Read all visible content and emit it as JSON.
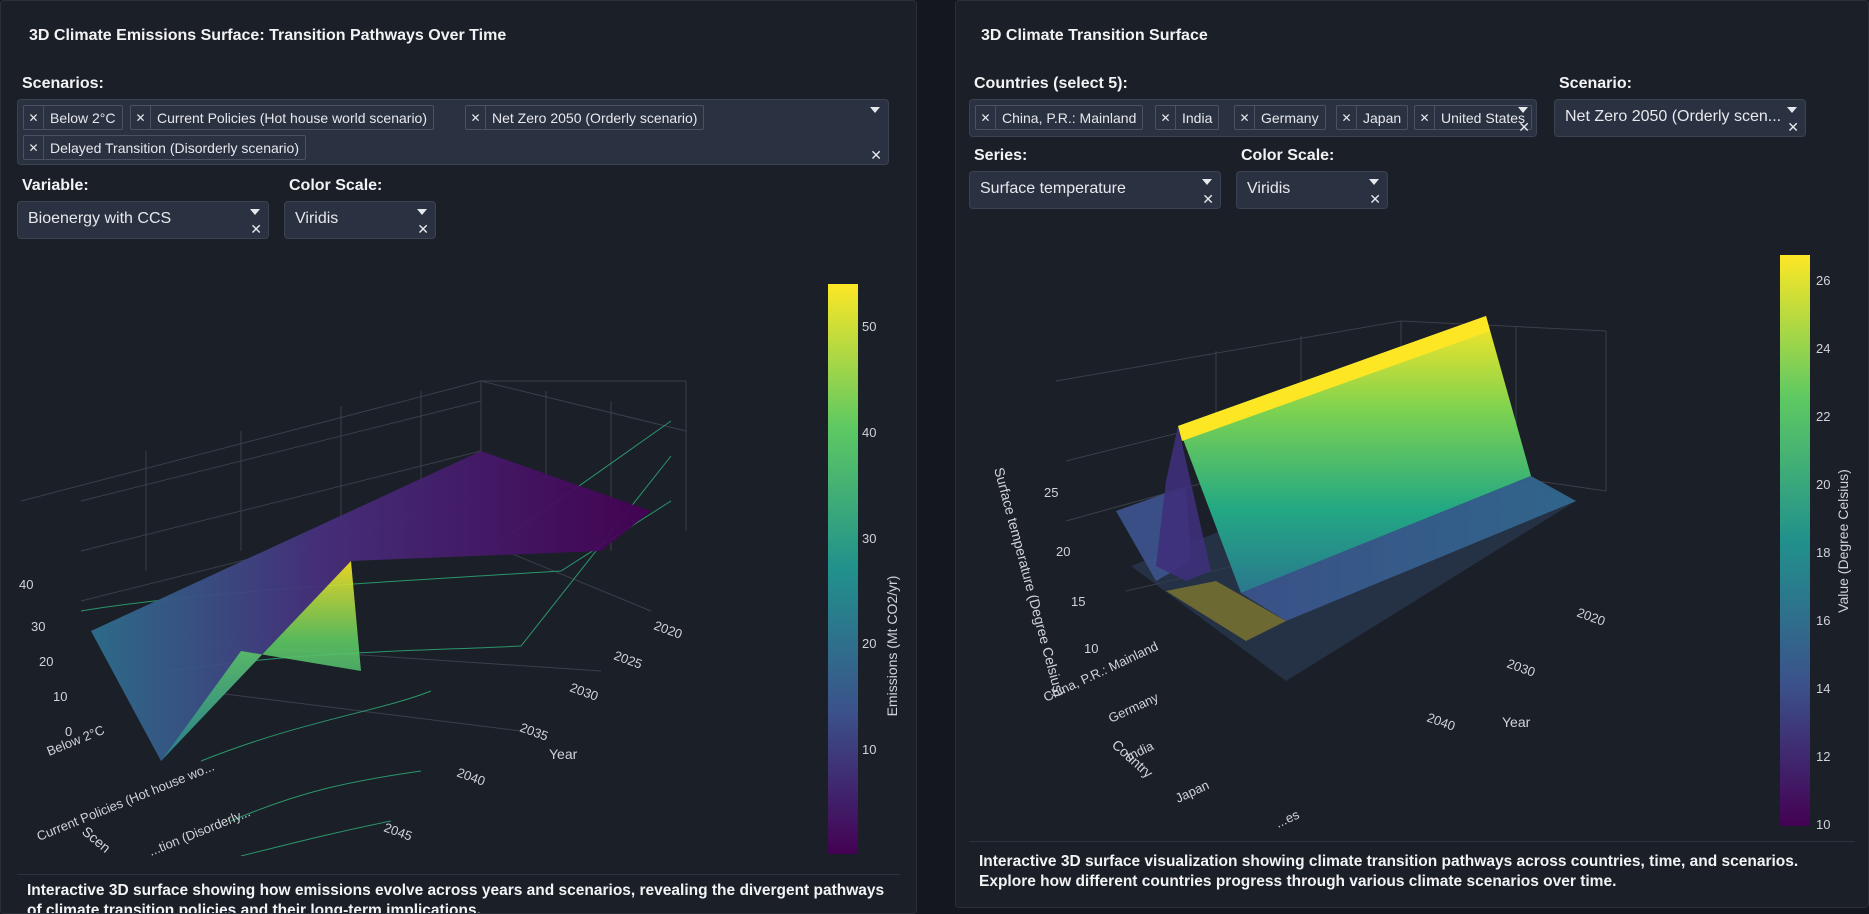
{
  "left": {
    "title": "3D Climate Emissions Surface: Transition Pathways Over Time",
    "scenarios_label": "Scenarios:",
    "scenario_chips": [
      "Below 2°C",
      "Current Policies (Hot house world scenario)",
      "Net Zero 2050 (Orderly scenario)",
      "Delayed Transition (Disorderly scenario)"
    ],
    "variable_label": "Variable:",
    "variable_value": "Bioenergy with CCS",
    "colorscale_label": "Color Scale:",
    "colorscale_value": "Viridis",
    "description": "Interactive 3D surface showing how emissions evolve across years and scenarios, revealing the divergent pathways of climate transition policies and their long-term implications."
  },
  "right": {
    "title": "3D Climate Transition Surface",
    "countries_label": "Countries (select 5):",
    "country_chips": [
      "China, P.R.: Mainland",
      "India",
      "Germany",
      "Japan",
      "United States"
    ],
    "scenario_label": "Scenario:",
    "scenario_value": "Net Zero 2050 (Orderly scen...",
    "series_label": "Series:",
    "series_value": "Surface temperature",
    "colorscale_label": "Color Scale:",
    "colorscale_value": "Viridis",
    "description": "Interactive 3D surface visualization showing climate transition pathways across countries, time, and scenarios. Explore how different countries progress through various climate scenarios over time."
  },
  "colors": {
    "viridis_top": "#fde725",
    "viridis_mid": "#21918c",
    "viridis_bottom": "#440154"
  },
  "chart_data": [
    {
      "type": "surface",
      "colorbar_title": "Emissions (Mt CO2/yr)",
      "colorbar_ticks": [
        "50",
        "40",
        "30",
        "20",
        "10"
      ],
      "z_ticks": [
        "40",
        "30",
        "20",
        "10",
        "0"
      ],
      "x_label": "Year",
      "x_ticks": [
        "2020",
        "2025",
        "2030",
        "2035",
        "2040",
        "2045"
      ],
      "y_label": "Scen",
      "y_ticks": [
        "Below 2°C",
        "Current Policies (Hot house wo...",
        "...tion (Disorderly..."
      ]
    },
    {
      "type": "surface",
      "colorbar_title": "Value (Degree Celsius)",
      "colorbar_ticks": [
        "26",
        "24",
        "22",
        "20",
        "18",
        "16",
        "14",
        "12",
        "10"
      ],
      "z_label": "Surface temperature (Degree Celsius)",
      "z_ticks": [
        "25",
        "20",
        "15",
        "10"
      ],
      "x_label": "Year",
      "x_ticks": [
        "2020",
        "2030",
        "2040"
      ],
      "y_label": "Country",
      "y_ticks": [
        "China, P.R.: Mainland",
        "Germany",
        "India",
        "Japan",
        "...es"
      ]
    }
  ]
}
